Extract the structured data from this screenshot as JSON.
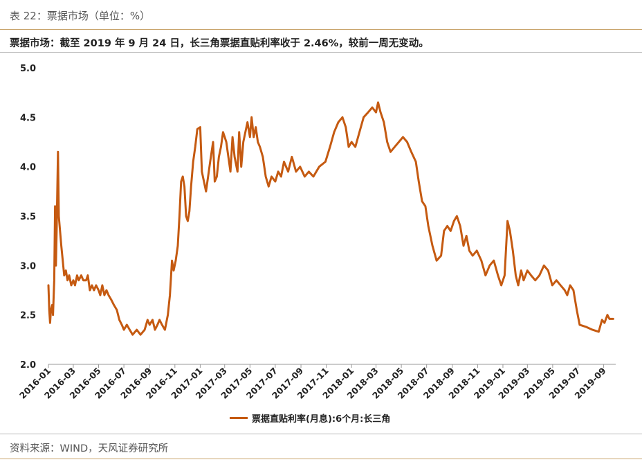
{
  "caption": "表 22：票据市场（单位：%）",
  "headline": "票据市场：截至 2019 年 9 月 24 日，长三角票据直贴利率收于 2.46%，较前一周无变动。",
  "source": "资料来源：WIND，天风证券研究所",
  "colors": {
    "series": "#c55a11",
    "accent_rule": "#c8a36a"
  },
  "chart_data": {
    "type": "line",
    "title": "",
    "xlabel": "",
    "ylabel": "",
    "ylim": [
      2.0,
      5.0
    ],
    "yticks": [
      "2.0",
      "2.5",
      "3.0",
      "3.5",
      "4.0",
      "4.5",
      "5.0"
    ],
    "xlim": [
      "2016-01-01",
      "2019-09-30"
    ],
    "xticks": [
      "2016-01",
      "2016-03",
      "2016-05",
      "2016-07",
      "2016-09",
      "2016-11",
      "2017-01",
      "2017-03",
      "2017-05",
      "2017-07",
      "2017-09",
      "2017-11",
      "2018-01",
      "2018-03",
      "2018-05",
      "2018-07",
      "2018-09",
      "2018-11",
      "2019-01",
      "2019-03",
      "2019-05",
      "2019-07",
      "2019-09"
    ],
    "grid": false,
    "legend": "bottom-center",
    "series": [
      {
        "name": "票据直贴利率(月息):6个月:长三角",
        "points": [
          [
            "2016-01-01",
            2.8
          ],
          [
            "2016-01-03",
            2.55
          ],
          [
            "2016-01-05",
            2.42
          ],
          [
            "2016-01-07",
            2.55
          ],
          [
            "2016-01-10",
            2.6
          ],
          [
            "2016-01-12",
            2.5
          ],
          [
            "2016-01-15",
            2.85
          ],
          [
            "2016-01-17",
            3.6
          ],
          [
            "2016-01-19",
            3.0
          ],
          [
            "2016-01-21",
            3.4
          ],
          [
            "2016-01-24",
            4.15
          ],
          [
            "2016-01-26",
            3.5
          ],
          [
            "2016-02-01",
            3.2
          ],
          [
            "2016-02-08",
            2.9
          ],
          [
            "2016-02-12",
            2.95
          ],
          [
            "2016-02-16",
            2.85
          ],
          [
            "2016-02-20",
            2.9
          ],
          [
            "2016-02-25",
            2.8
          ],
          [
            "2016-03-01",
            2.85
          ],
          [
            "2016-03-05",
            2.8
          ],
          [
            "2016-03-10",
            2.9
          ],
          [
            "2016-03-14",
            2.85
          ],
          [
            "2016-03-20",
            2.9
          ],
          [
            "2016-03-25",
            2.85
          ],
          [
            "2016-04-01",
            2.85
          ],
          [
            "2016-04-05",
            2.9
          ],
          [
            "2016-04-10",
            2.75
          ],
          [
            "2016-04-15",
            2.8
          ],
          [
            "2016-04-20",
            2.75
          ],
          [
            "2016-04-25",
            2.8
          ],
          [
            "2016-05-01",
            2.75
          ],
          [
            "2016-05-05",
            2.7
          ],
          [
            "2016-05-10",
            2.8
          ],
          [
            "2016-05-15",
            2.7
          ],
          [
            "2016-05-20",
            2.75
          ],
          [
            "2016-05-25",
            2.7
          ],
          [
            "2016-06-01",
            2.65
          ],
          [
            "2016-06-07",
            2.6
          ],
          [
            "2016-06-14",
            2.55
          ],
          [
            "2016-06-20",
            2.45
          ],
          [
            "2016-06-26",
            2.4
          ],
          [
            "2016-07-01",
            2.35
          ],
          [
            "2016-07-08",
            2.4
          ],
          [
            "2016-07-15",
            2.35
          ],
          [
            "2016-07-22",
            2.3
          ],
          [
            "2016-08-01",
            2.35
          ],
          [
            "2016-08-10",
            2.3
          ],
          [
            "2016-08-20",
            2.35
          ],
          [
            "2016-08-27",
            2.45
          ],
          [
            "2016-09-01",
            2.4
          ],
          [
            "2016-09-08",
            2.45
          ],
          [
            "2016-09-14",
            2.35
          ],
          [
            "2016-09-20",
            2.4
          ],
          [
            "2016-09-25",
            2.45
          ],
          [
            "2016-10-01",
            2.4
          ],
          [
            "2016-10-08",
            2.35
          ],
          [
            "2016-10-15",
            2.5
          ],
          [
            "2016-10-20",
            2.7
          ],
          [
            "2016-10-25",
            3.05
          ],
          [
            "2016-10-29",
            2.95
          ],
          [
            "2016-11-03",
            3.05
          ],
          [
            "2016-11-08",
            3.2
          ],
          [
            "2016-11-12",
            3.5
          ],
          [
            "2016-11-16",
            3.85
          ],
          [
            "2016-11-20",
            3.9
          ],
          [
            "2016-11-24",
            3.8
          ],
          [
            "2016-11-28",
            3.5
          ],
          [
            "2016-12-02",
            3.45
          ],
          [
            "2016-12-06",
            3.55
          ],
          [
            "2016-12-10",
            3.8
          ],
          [
            "2016-12-15",
            4.05
          ],
          [
            "2016-12-20",
            4.2
          ],
          [
            "2016-12-25",
            4.38
          ],
          [
            "2017-01-01",
            4.4
          ],
          [
            "2017-01-05",
            3.95
          ],
          [
            "2017-01-10",
            3.85
          ],
          [
            "2017-01-15",
            3.75
          ],
          [
            "2017-01-20",
            3.9
          ],
          [
            "2017-01-25",
            4.05
          ],
          [
            "2017-02-01",
            4.25
          ],
          [
            "2017-02-05",
            3.85
          ],
          [
            "2017-02-10",
            3.9
          ],
          [
            "2017-02-15",
            4.1
          ],
          [
            "2017-02-20",
            4.2
          ],
          [
            "2017-02-25",
            4.35
          ],
          [
            "2017-03-01",
            4.3
          ],
          [
            "2017-03-05",
            4.25
          ],
          [
            "2017-03-10",
            4.1
          ],
          [
            "2017-03-15",
            3.95
          ],
          [
            "2017-03-20",
            4.3
          ],
          [
            "2017-03-25",
            4.1
          ],
          [
            "2017-04-01",
            3.95
          ],
          [
            "2017-04-05",
            4.35
          ],
          [
            "2017-04-10",
            4.0
          ],
          [
            "2017-04-15",
            4.25
          ],
          [
            "2017-04-20",
            4.35
          ],
          [
            "2017-04-25",
            4.45
          ],
          [
            "2017-05-01",
            4.3
          ],
          [
            "2017-05-05",
            4.5
          ],
          [
            "2017-05-10",
            4.3
          ],
          [
            "2017-05-15",
            4.4
          ],
          [
            "2017-05-20",
            4.25
          ],
          [
            "2017-05-25",
            4.2
          ],
          [
            "2017-06-01",
            4.1
          ],
          [
            "2017-06-08",
            3.9
          ],
          [
            "2017-06-15",
            3.8
          ],
          [
            "2017-06-22",
            3.9
          ],
          [
            "2017-07-01",
            3.85
          ],
          [
            "2017-07-08",
            3.95
          ],
          [
            "2017-07-15",
            3.9
          ],
          [
            "2017-07-22",
            4.05
          ],
          [
            "2017-08-01",
            3.95
          ],
          [
            "2017-08-10",
            4.1
          ],
          [
            "2017-08-20",
            3.95
          ],
          [
            "2017-08-30",
            4.0
          ],
          [
            "2017-09-10",
            3.9
          ],
          [
            "2017-09-20",
            3.95
          ],
          [
            "2017-10-01",
            3.9
          ],
          [
            "2017-10-15",
            4.0
          ],
          [
            "2017-10-30",
            4.05
          ],
          [
            "2017-11-10",
            4.2
          ],
          [
            "2017-11-20",
            4.35
          ],
          [
            "2017-11-30",
            4.45
          ],
          [
            "2017-12-10",
            4.5
          ],
          [
            "2017-12-18",
            4.4
          ],
          [
            "2017-12-25",
            4.2
          ],
          [
            "2018-01-01",
            4.25
          ],
          [
            "2018-01-10",
            4.2
          ],
          [
            "2018-01-20",
            4.35
          ],
          [
            "2018-01-30",
            4.5
          ],
          [
            "2018-02-10",
            4.55
          ],
          [
            "2018-02-20",
            4.6
          ],
          [
            "2018-03-01",
            4.55
          ],
          [
            "2018-03-06",
            4.65
          ],
          [
            "2018-03-12",
            4.55
          ],
          [
            "2018-03-20",
            4.45
          ],
          [
            "2018-03-28",
            4.25
          ],
          [
            "2018-04-05",
            4.15
          ],
          [
            "2018-04-15",
            4.2
          ],
          [
            "2018-04-25",
            4.25
          ],
          [
            "2018-05-05",
            4.3
          ],
          [
            "2018-05-15",
            4.25
          ],
          [
            "2018-05-25",
            4.15
          ],
          [
            "2018-06-05",
            4.05
          ],
          [
            "2018-06-12",
            3.85
          ],
          [
            "2018-06-20",
            3.65
          ],
          [
            "2018-06-28",
            3.6
          ],
          [
            "2018-07-05",
            3.4
          ],
          [
            "2018-07-15",
            3.2
          ],
          [
            "2018-07-25",
            3.05
          ],
          [
            "2018-08-05",
            3.1
          ],
          [
            "2018-08-12",
            3.35
          ],
          [
            "2018-08-20",
            3.4
          ],
          [
            "2018-08-28",
            3.35
          ],
          [
            "2018-09-05",
            3.45
          ],
          [
            "2018-09-12",
            3.5
          ],
          [
            "2018-09-20",
            3.4
          ],
          [
            "2018-09-28",
            3.2
          ],
          [
            "2018-10-05",
            3.3
          ],
          [
            "2018-10-12",
            3.15
          ],
          [
            "2018-10-20",
            3.1
          ],
          [
            "2018-10-30",
            3.15
          ],
          [
            "2018-11-10",
            3.05
          ],
          [
            "2018-11-20",
            2.9
          ],
          [
            "2018-11-30",
            3.0
          ],
          [
            "2018-12-10",
            3.05
          ],
          [
            "2018-12-20",
            2.9
          ],
          [
            "2018-12-28",
            2.8
          ],
          [
            "2019-01-05",
            2.9
          ],
          [
            "2019-01-12",
            3.45
          ],
          [
            "2019-01-18",
            3.35
          ],
          [
            "2019-01-25",
            3.15
          ],
          [
            "2019-02-01",
            2.9
          ],
          [
            "2019-02-07",
            2.8
          ],
          [
            "2019-02-14",
            2.95
          ],
          [
            "2019-02-20",
            2.85
          ],
          [
            "2019-03-01",
            2.95
          ],
          [
            "2019-03-10",
            2.9
          ],
          [
            "2019-03-20",
            2.85
          ],
          [
            "2019-03-30",
            2.9
          ],
          [
            "2019-04-10",
            3.0
          ],
          [
            "2019-04-20",
            2.95
          ],
          [
            "2019-04-30",
            2.8
          ],
          [
            "2019-05-10",
            2.85
          ],
          [
            "2019-05-20",
            2.8
          ],
          [
            "2019-05-30",
            2.75
          ],
          [
            "2019-06-05",
            2.7
          ],
          [
            "2019-06-12",
            2.8
          ],
          [
            "2019-06-20",
            2.75
          ],
          [
            "2019-06-28",
            2.55
          ],
          [
            "2019-07-05",
            2.4
          ],
          [
            "2019-07-20",
            2.38
          ],
          [
            "2019-08-05",
            2.35
          ],
          [
            "2019-08-20",
            2.33
          ],
          [
            "2019-08-28",
            2.45
          ],
          [
            "2019-09-03",
            2.42
          ],
          [
            "2019-09-10",
            2.5
          ],
          [
            "2019-09-15",
            2.46
          ],
          [
            "2019-09-24",
            2.46
          ]
        ]
      }
    ]
  }
}
